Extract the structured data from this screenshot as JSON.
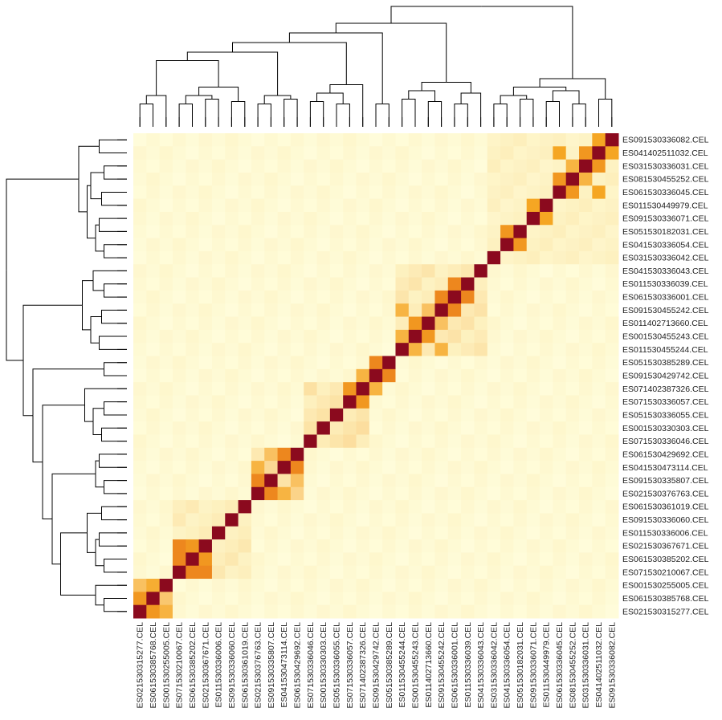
{
  "chart_data": {
    "type": "heatmap",
    "title": "",
    "col_labels": [
      "ES021530315277.CEL",
      "ES061530385768.CEL",
      "ES001530255005.CEL",
      "ES071530210067.CEL",
      "ES061530385202.CEL",
      "ES021530367671.CEL",
      "ES011530336006.CEL",
      "ES091530336060.CEL",
      "ES061530361019.CEL",
      "ES021530376763.CEL",
      "ES091530335807.CEL",
      "ES041530473114.CEL",
      "ES061530429692.CEL",
      "ES071530336046.CEL",
      "ES001530330303.CEL",
      "ES051530336055.CEL",
      "ES071530336057.CEL",
      "ES071402387326.CEL",
      "ES091530429742.CEL",
      "ES051530385289.CEL",
      "ES011530455244.CEL",
      "ES001530455243.CEL",
      "ES011402713660.CEL",
      "ES091530455242.CEL",
      "ES061530336001.CEL",
      "ES011530336039.CEL",
      "ES041530336043.CEL",
      "ES031530336042.CEL",
      "ES041530336054.CEL",
      "ES051530182031.CEL",
      "ES091530336071.CEL",
      "ES011530449979.CEL",
      "ES061530336045.CEL",
      "ES081530455252.CEL",
      "ES031530336031.CEL",
      "ES041402511032.CEL",
      "ES091530336082.CEL"
    ],
    "row_labels_top_to_bottom": [
      "ES091530336082.CEL",
      "ES041402511032.CEL",
      "ES031530336031.CEL",
      "ES081530455252.CEL",
      "ES061530336045.CEL",
      "ES011530449979.CEL",
      "ES091530336071.CEL",
      "ES051530182031.CEL",
      "ES041530336054.CEL",
      "ES031530336042.CEL",
      "ES041530336043.CEL",
      "ES011530336039.CEL",
      "ES061530336001.CEL",
      "ES091530455242.CEL",
      "ES011402713660.CEL",
      "ES001530455243.CEL",
      "ES011530455244.CEL",
      "ES051530385289.CEL",
      "ES091530429742.CEL",
      "ES071402387326.CEL",
      "ES071530336057.CEL",
      "ES051530336055.CEL",
      "ES001530330303.CEL",
      "ES071530336046.CEL",
      "ES061530429692.CEL",
      "ES041530473114.CEL",
      "ES091530335807.CEL",
      "ES021530376763.CEL",
      "ES061530361019.CEL",
      "ES091530336060.CEL",
      "ES011530336006.CEL",
      "ES021530367671.CEL",
      "ES061530385202.CEL",
      "ES071530210067.CEL",
      "ES001530255005.CEL",
      "ES061530385768.CEL",
      "ES021530315277.CEL"
    ],
    "groups": [
      {
        "size": 3,
        "within": 0.55
      },
      {
        "size": 6,
        "within": 0.22
      },
      {
        "size": 4,
        "within": 0.35
      },
      {
        "size": 5,
        "within": 0.28
      },
      {
        "size": 2,
        "within": 0.55
      },
      {
        "size": 7,
        "within": 0.25
      },
      {
        "size": 10,
        "within": 0.18
      }
    ],
    "strong_pairs": [
      [
        0,
        1,
        0.55
      ],
      [
        3,
        4,
        0.6
      ],
      [
        3,
        5,
        0.6
      ],
      [
        4,
        5,
        0.55
      ],
      [
        9,
        10,
        0.6
      ],
      [
        9,
        11,
        0.45
      ],
      [
        10,
        12,
        0.4
      ],
      [
        11,
        12,
        0.6
      ],
      [
        17,
        18,
        0.45
      ],
      [
        18,
        19,
        0.6
      ],
      [
        16,
        17,
        0.55
      ],
      [
        20,
        21,
        0.45
      ],
      [
        21,
        22,
        0.55
      ],
      [
        23,
        24,
        0.6
      ],
      [
        24,
        25,
        0.6
      ],
      [
        20,
        23,
        0.45
      ],
      [
        22,
        23,
        0.4
      ],
      [
        32,
        33,
        0.55
      ],
      [
        33,
        34,
        0.45
      ],
      [
        34,
        35,
        0.55
      ],
      [
        35,
        36,
        0.5
      ],
      [
        32,
        35,
        0.5
      ],
      [
        30,
        31,
        0.5
      ],
      [
        28,
        29,
        0.55
      ]
    ],
    "color_scale": [
      "#ffffe0",
      "#fdf0be",
      "#fbd38a",
      "#f5a623",
      "#e8731a",
      "#c33114",
      "#8b0a1e"
    ],
    "grid": false,
    "legend": "none"
  }
}
